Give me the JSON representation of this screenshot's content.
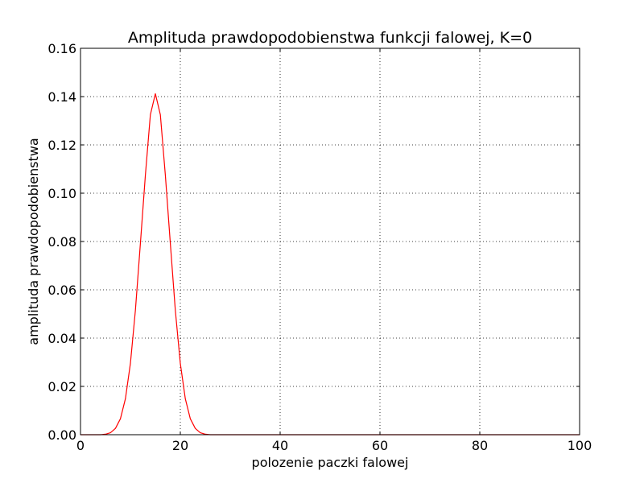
{
  "chart_data": {
    "type": "line",
    "title": "Amplituda prawdopodobienstwa funkcji falowej, K=0",
    "xlabel": "polozenie paczki falowej",
    "ylabel": "amplituda prawdopodobienstwa",
    "xlim": [
      0,
      100
    ],
    "ylim": [
      0,
      0.16
    ],
    "xticks": [
      0,
      20,
      40,
      60,
      80,
      100
    ],
    "xtick_labels": [
      "0",
      "20",
      "40",
      "60",
      "80",
      "100"
    ],
    "yticks": [
      0,
      0.02,
      0.04,
      0.06,
      0.08,
      0.1,
      0.12,
      0.14,
      0.16
    ],
    "ytick_labels": [
      "0.00",
      "0.02",
      "0.04",
      "0.06",
      "0.08",
      "0.10",
      "0.12",
      "0.14",
      "0.16"
    ],
    "grid": true,
    "series": [
      {
        "color": "#ff0000",
        "x": [
          0,
          1,
          2,
          3,
          4,
          5,
          6,
          7,
          8,
          9,
          10,
          11,
          12,
          13,
          14,
          15,
          16,
          17,
          18,
          19,
          20,
          21,
          22,
          23,
          24,
          25,
          26,
          27,
          28,
          29,
          30,
          35,
          40,
          50,
          60,
          70,
          80,
          90,
          100
        ],
        "y": [
          0,
          0,
          0,
          0,
          0,
          0.0002,
          0.0008,
          0.0026,
          0.0066,
          0.0149,
          0.0295,
          0.0515,
          0.0792,
          0.1075,
          0.1325,
          0.1412,
          0.1325,
          0.1075,
          0.0792,
          0.0515,
          0.0295,
          0.0149,
          0.0066,
          0.0026,
          0.0008,
          0.0002,
          0,
          0,
          0,
          0,
          0,
          0,
          0,
          0,
          0,
          0,
          0,
          0,
          0
        ]
      }
    ]
  }
}
